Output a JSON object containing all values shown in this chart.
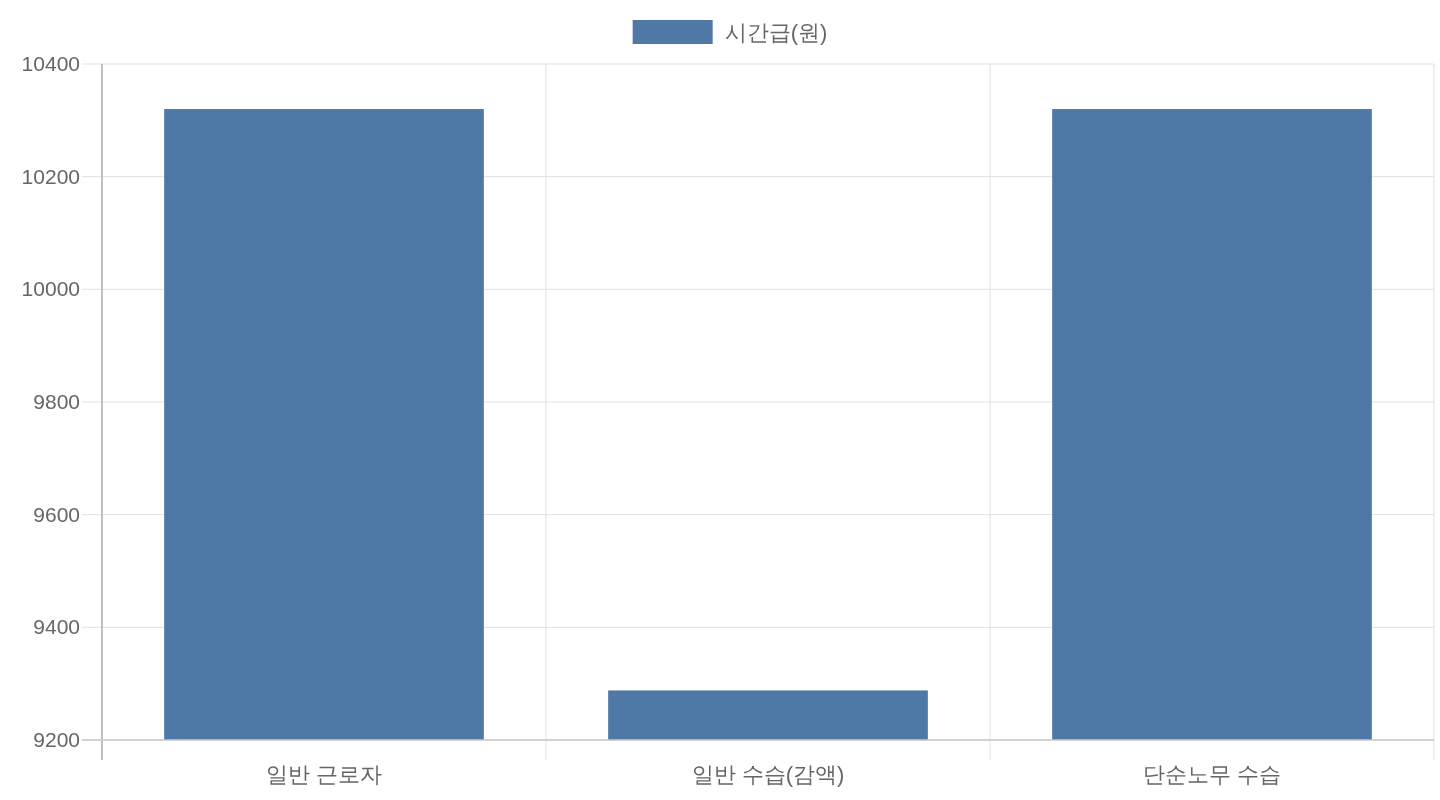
{
  "chart_data": {
    "type": "bar",
    "categories": [
      "일반 근로자",
      "일반 수습(감액)",
      "단순노무 수습"
    ],
    "series": [
      {
        "name": "시간급(원)",
        "color": "#4e79a7",
        "values": [
          10320,
          9288,
          10320
        ]
      }
    ],
    "ylim": [
      9200,
      10400
    ],
    "yticks": [
      9200,
      9400,
      9600,
      9800,
      10000,
      10200,
      10400
    ],
    "grid": true,
    "legend": "top"
  }
}
